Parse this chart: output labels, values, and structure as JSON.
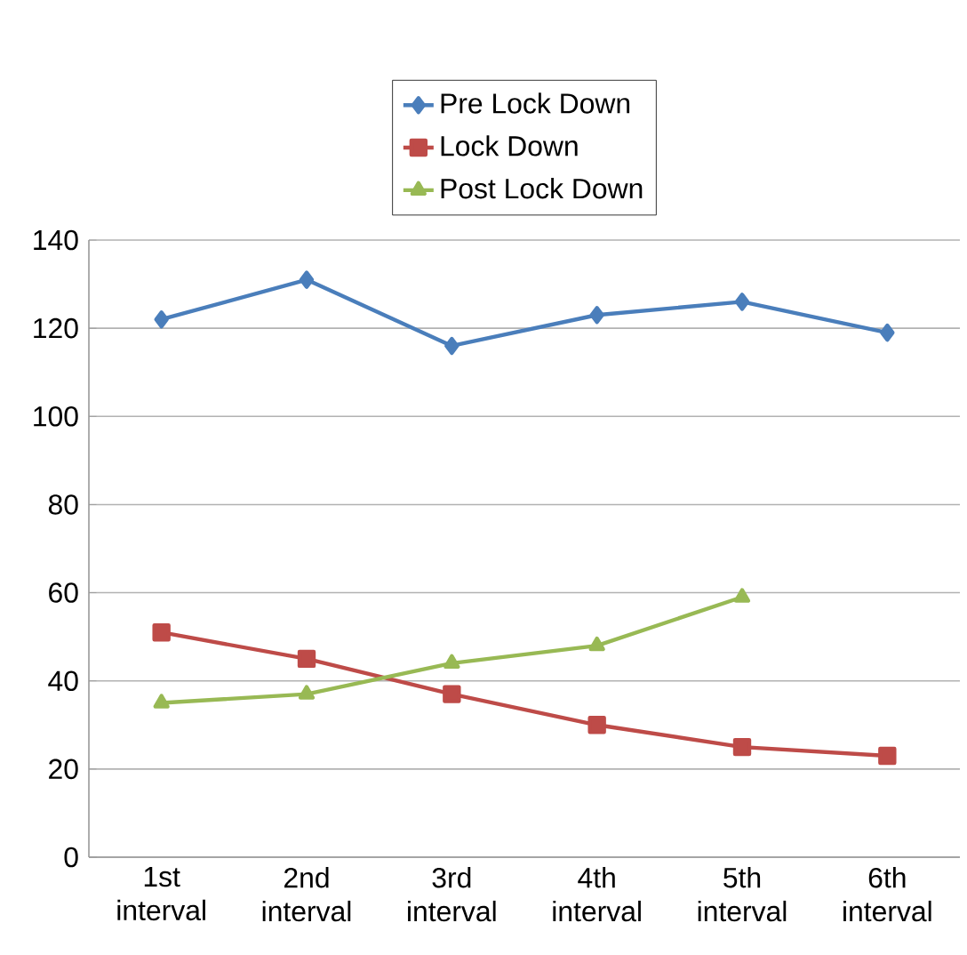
{
  "chart_data": {
    "type": "line",
    "categories": [
      "1st interval",
      "2nd interval",
      "3rd interval",
      "4th interval",
      "5th interval",
      "6th interval"
    ],
    "series": [
      {
        "name": "Pre Lock Down",
        "color": "#4a7ebb",
        "marker": "diamond",
        "values": [
          122,
          131,
          116,
          123,
          126,
          119
        ]
      },
      {
        "name": "Lock Down",
        "color": "#be4b48",
        "marker": "square",
        "values": [
          51,
          45,
          37,
          30,
          25,
          23
        ]
      },
      {
        "name": "Post Lock Down",
        "color": "#98b954",
        "marker": "triangle",
        "values": [
          35,
          37,
          44,
          48,
          59,
          null
        ]
      }
    ],
    "ylim": [
      0,
      140
    ],
    "yticks": [
      0,
      20,
      40,
      60,
      80,
      100,
      120,
      140
    ],
    "grid": "y",
    "legend": "top"
  }
}
